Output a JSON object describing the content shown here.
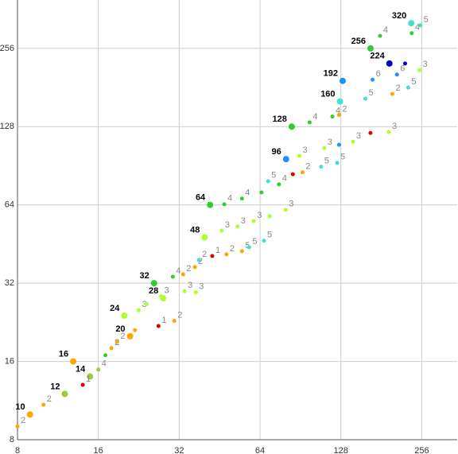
{
  "chart_data": {
    "type": "scatter",
    "log_base": 2,
    "grid": true,
    "xlim": [
      8,
      347
    ],
    "ylim": [
      8,
      393
    ],
    "xticks": [
      8,
      16,
      32,
      64,
      128,
      256
    ],
    "yticks": [
      8,
      16,
      32,
      64,
      128,
      256
    ],
    "series": [
      {
        "size": 4,
        "label_style": "big",
        "x": [
          8.9,
          12,
          14.9,
          12.9,
          21,
          20,
          27.9,
          25.8,
          39.8,
          41.7,
          80,
          84,
          127,
          130,
          194,
          165,
          234
        ],
        "values": [
          10,
          12,
          14,
          16,
          20,
          24,
          28,
          32,
          48,
          64,
          96,
          128,
          160,
          192,
          224,
          256,
          320
        ],
        "colors": [
          "#ffa500",
          "#9acd32",
          "#9acd32",
          "#ffa500",
          "#ffa500",
          "#adff2f",
          "#adff2f",
          "#32cd32",
          "#adff2f",
          "#32cd32",
          "#1e90ff",
          "#32cd32",
          "#40e0d0",
          "#1e90ff",
          "#0000cd",
          "#32cd32",
          "#40e0d0"
        ]
      },
      {
        "size": 2.5,
        "label_style": "small",
        "x": [
          8,
          10,
          14,
          16,
          17,
          17.9,
          18.8,
          21.9,
          26.8,
          30.7,
          22.6,
          24.2,
          27.4,
          30.3,
          33.5,
          36.9,
          33.1,
          36.6,
          37.9,
          42.5,
          48,
          54.8,
          58.3,
          66.2,
          46.1,
          52.8,
          60.7,
          69.5,
          79.7,
          47.1,
          54.8,
          64.8,
          75.3,
          68.6,
          84.8,
          92.1,
          108,
          124,
          89.7,
          111,
          142,
          193,
          126,
          165,
          97.9,
          119,
          126,
          158,
          199,
          228,
          168,
          207,
          251,
          222,
          179,
          235,
          253
        ],
        "values": [
          9,
          10.9,
          13,
          14.9,
          16.9,
          18,
          19,
          21.1,
          21.9,
          22.9,
          25.2,
          26.6,
          28.5,
          33.9,
          29.8,
          29.5,
          34.6,
          36.9,
          39.3,
          40.7,
          41.3,
          42.5,
          44,
          46.6,
          51,
          52.8,
          55.5,
          57.9,
          61.3,
          64.4,
          67.7,
          71.5,
          76.8,
          79,
          84,
          85.4,
          89.7,
          92.9,
          98.8,
          106,
          112,
          122,
          109,
          121,
          133,
          140,
          142,
          164,
          171,
          181,
          194,
          203,
          211,
          224,
          286,
          293,
          314
        ],
        "colors": [
          "#ffa500",
          "#ffa500",
          "#e00000",
          "#9acd32",
          "#32cd32",
          "#ffa500",
          "#ffa500",
          "#ffa500",
          "#e00000",
          "#ffa500",
          "#adff2f",
          "#adff2f",
          "#adff2f",
          "#32cd32",
          "#adff2f",
          "#adff2f",
          "#ffa500",
          "#ffa500",
          "#40e0d0",
          "#e00000",
          "#ffa500",
          "#ffa500",
          "#40e0d0",
          "#40e0d0",
          "#adff2f",
          "#adff2f",
          "#adff2f",
          "#adff2f",
          "#adff2f",
          "#32cd32",
          "#32cd32",
          "#32cd32",
          "#32cd32",
          "#40e0d0",
          "#e00000",
          "#ffa500",
          "#40e0d0",
          "#40e0d0",
          "#adff2f",
          "#adff2f",
          "#adff2f",
          "#adff2f",
          "#1e90ff",
          "#e00000",
          "#32cd32",
          "#32cd32",
          "#ffa500",
          "#40e0d0",
          "#ffa500",
          "#40e0d0",
          "#1e90ff",
          "#1e90ff",
          "#adff2f",
          "#0000cd",
          "#32cd32",
          "#32cd32",
          "#40e0d0"
        ],
        "labels": [
          "2",
          "2",
          "1",
          "4",
          null,
          "2",
          "2",
          null,
          "1",
          "2",
          "3",
          null,
          "3",
          "4",
          "3",
          "3",
          "2",
          "2",
          "2",
          "1",
          "2",
          "5",
          "5",
          "5",
          "3",
          "3",
          "3",
          null,
          "3",
          "4",
          "4",
          null,
          "4",
          "5",
          null,
          "2",
          "5",
          "5",
          "3",
          "3",
          "3",
          "3",
          null,
          null,
          "4",
          "4",
          "2",
          "5",
          "2",
          "5",
          "6",
          "6",
          "3",
          null,
          "4",
          "4",
          "5"
        ]
      }
    ]
  }
}
